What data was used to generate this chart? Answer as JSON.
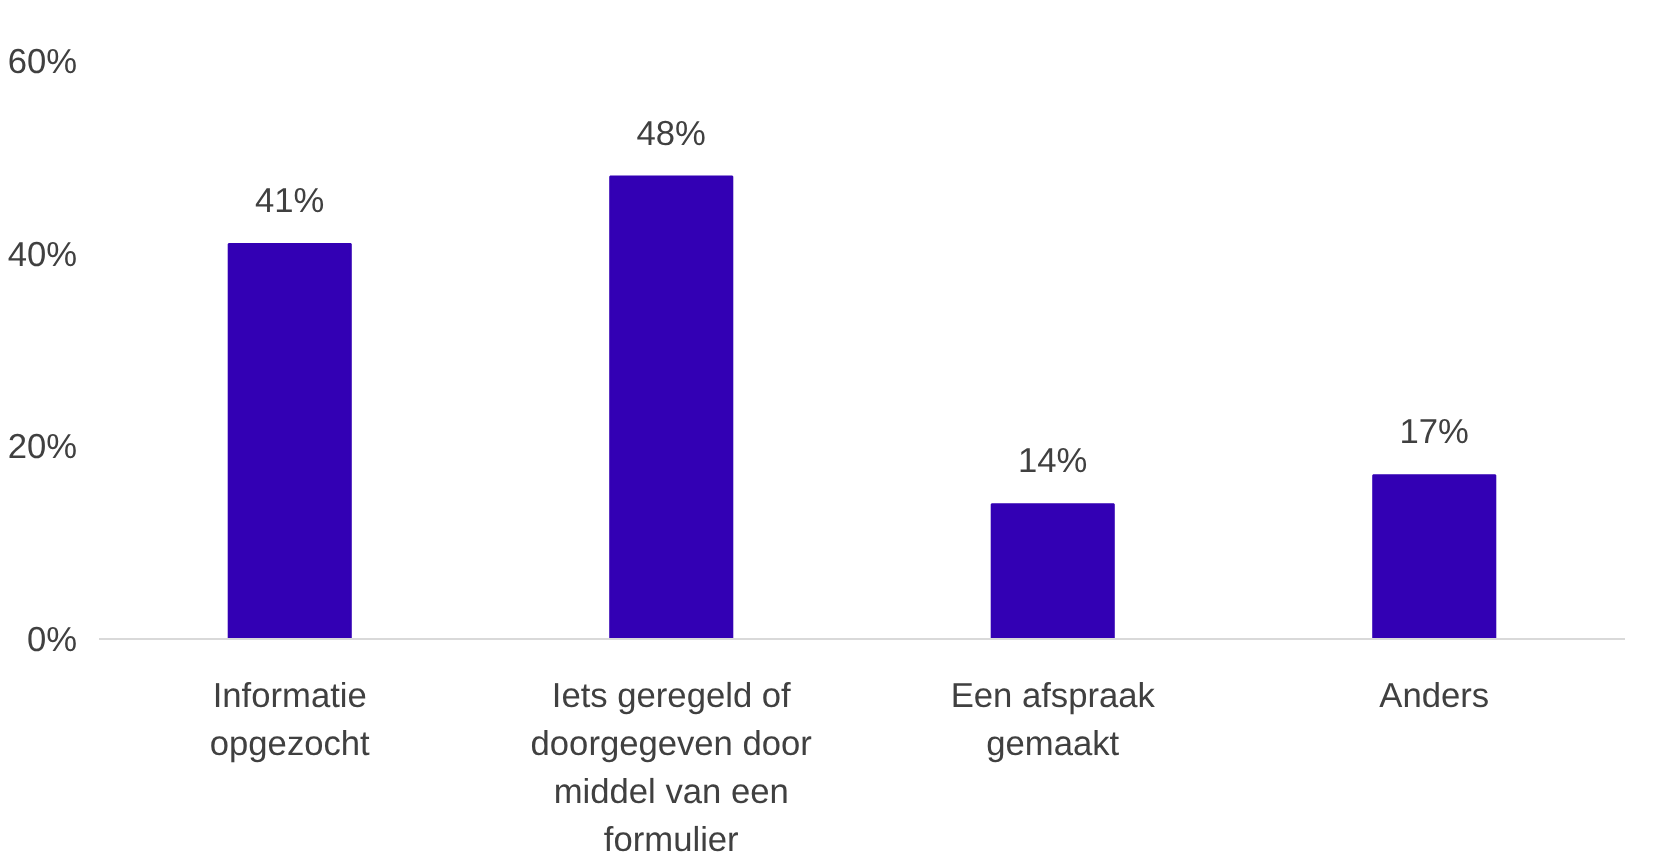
{
  "chart_data": {
    "type": "bar",
    "categories": [
      "Informatie\nopgezocht",
      "Iets geregeld of\ndoorgegeven door\nmiddel van een\nformulier",
      "Een afspraak\ngemaakt",
      "Anders"
    ],
    "values": [
      41,
      48,
      14,
      17
    ],
    "color": "#3300b4",
    "value_labels": [
      "41%",
      "48%",
      "14%",
      "17%"
    ],
    "ylim": [
      0,
      60
    ],
    "yticks": [
      {
        "value": 0,
        "label": "0%"
      },
      {
        "value": 20,
        "label": "20%"
      },
      {
        "value": 40,
        "label": "40%"
      },
      {
        "value": 60,
        "label": "60%"
      }
    ],
    "grid": false
  }
}
